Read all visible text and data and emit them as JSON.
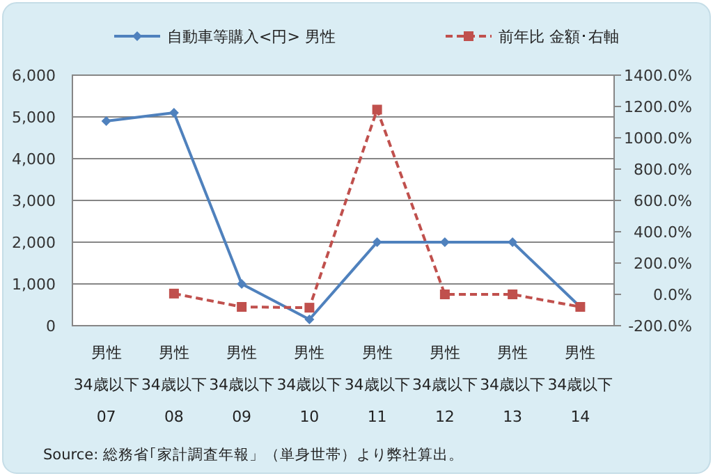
{
  "chart_data": {
    "type": "line",
    "categories": [
      "男性\n34歳以下\n07",
      "男性\n34歳以下\n08",
      "男性\n34歳以下\n09",
      "男性\n34歳以下\n10",
      "男性\n34歳以下\n11",
      "男性\n34歳以下\n12",
      "男性\n34歳以下\n13",
      "男性\n34歳以下\n14"
    ],
    "series": [
      {
        "name": "自動車等購入<円> 男性",
        "color": "#4f81bd",
        "marker": "diamond",
        "line_style": "solid",
        "values": [
          4900,
          5100,
          1000,
          150,
          2000,
          2000,
          2000,
          450
        ]
      },
      {
        "name": "前年比 金額･右軸",
        "color": "#c0504d",
        "marker": "square",
        "line_style": "dashed",
        "axis": "y2",
        "values": [
          null,
          5,
          -80,
          -85,
          1180,
          0,
          0,
          -80
        ]
      }
    ],
    "ylim": [
      0,
      6000
    ],
    "yticks": [
      0,
      {
        "value": 1000,
        "label": "1,000"
      },
      {
        "value": 2000,
        "label": "2,000"
      },
      {
        "value": 3000,
        "label": "3,000"
      },
      {
        "value": 4000,
        "label": "4,000"
      },
      {
        "value": 5000,
        "label": "5,000"
      },
      {
        "value": 6000,
        "label": "6,000"
      }
    ],
    "y2lim": [
      -200,
      1400
    ],
    "y2ticks": [
      {
        "value": -200,
        "label": "-200.0%"
      },
      {
        "value": 0,
        "label": "0.0%"
      },
      {
        "value": 200,
        "label": "200.0%"
      },
      {
        "value": 400,
        "label": "400.0%"
      },
      {
        "value": 600,
        "label": "600.0%"
      },
      {
        "value": 800,
        "label": "800.0%"
      },
      {
        "value": 1000,
        "label": "1000.0%"
      },
      {
        "value": 1200,
        "label": "1200.0%"
      },
      {
        "value": 1400,
        "label": "1400.0%"
      }
    ],
    "grid": "y",
    "legend": "top",
    "annotations": [
      "Source: 総務省｢家計調査年報」（単身世帯）より弊社算出。"
    ]
  }
}
